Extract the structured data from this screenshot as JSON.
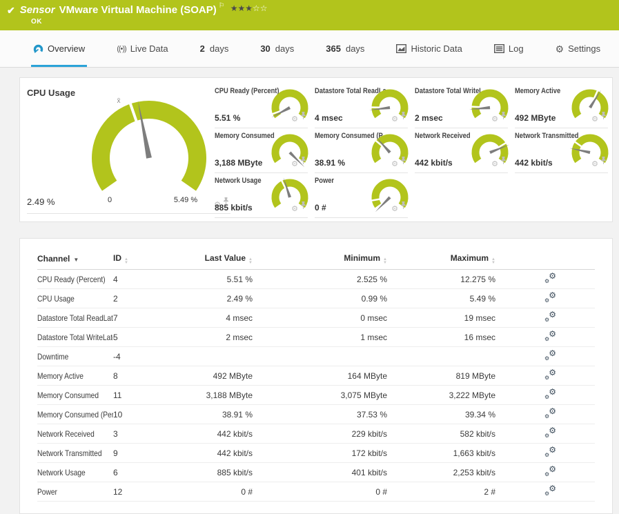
{
  "glyphs": {
    "check": "✔",
    "flag": "⚐",
    "gear": "⚙",
    "star_filled": "★",
    "star_empty": "☆",
    "live": "((•))",
    "avg": "x̄",
    "sort_up": "▲",
    "sort_down": "▼"
  },
  "colors": {
    "accent_green": "#b2c41c",
    "accent_blue": "#2ba3d8",
    "needle_gray": "#7d7d7d",
    "row_icon": "#3a4a59"
  },
  "header": {
    "type_label": "Sensor",
    "title": "VMware Virtual Machine (SOAP)",
    "status": "OK",
    "rating": {
      "filled": 3,
      "total": 5
    }
  },
  "tabs": [
    {
      "id": "overview",
      "icon": "gauge",
      "label": "Overview",
      "active": true
    },
    {
      "id": "live-data",
      "icon": "live",
      "label": "Live Data",
      "active": false
    },
    {
      "id": "2-days",
      "prefix": "2",
      "label": "days",
      "active": false
    },
    {
      "id": "30-days",
      "prefix": "30",
      "label": "days",
      "active": false
    },
    {
      "id": "365-days",
      "prefix": "365",
      "label": "days",
      "active": false
    },
    {
      "id": "historic-data",
      "icon": "chart",
      "label": "Historic Data",
      "active": false
    },
    {
      "id": "log",
      "icon": "log",
      "label": "Log",
      "active": false
    },
    {
      "id": "settings",
      "icon": "gear",
      "label": "Settings",
      "active": false
    }
  ],
  "gauges": {
    "main": {
      "title": "CPU Usage",
      "value": "2.49 %",
      "min_label": "0",
      "max_label": "5.49 %",
      "needle_angle": -11,
      "avg_angle": -19,
      "avg_symbol": "x̄"
    },
    "items": [
      {
        "slug": "cpu-ready",
        "title": "CPU Ready (Percent)",
        "value": "5.51 %",
        "needle_angle": -118,
        "avg_angle": -110
      },
      {
        "slug": "datastore-read",
        "title": "Datastore Total ReadLa...",
        "value": "4 msec",
        "needle_angle": -97,
        "avg_angle": -89
      },
      {
        "slug": "datastore-write",
        "title": "Datastore Total WriteL...",
        "value": "2 msec",
        "needle_angle": -95,
        "avg_angle": -87
      },
      {
        "slug": "memory-active",
        "title": "Memory Active",
        "value": "492 MByte",
        "needle_angle": 32,
        "avg_angle": 24
      },
      {
        "slug": "memory-consumed",
        "title": "Memory Consumed",
        "value": "3,188 MByte",
        "needle_angle": 135,
        "avg_angle": 127
      },
      {
        "slug": "memory-consumed-pct",
        "title": "Memory Consumed (P...",
        "value": "38.91 %",
        "needle_angle": -42,
        "avg_angle": -50
      },
      {
        "slug": "network-received",
        "title": "Network Received",
        "value": "442 kbit/s",
        "needle_angle": 68,
        "avg_angle": 59
      },
      {
        "slug": "network-transmitted",
        "title": "Network Transmitted",
        "value": "442 kbit/s",
        "needle_angle": -78,
        "avg_angle": -55
      },
      {
        "slug": "network-usage",
        "title": "Network Usage",
        "value": "885 kbit/s",
        "needle_angle": -18,
        "avg_angle": -26
      },
      {
        "slug": "power",
        "title": "Power",
        "value": "0 #",
        "needle_angle": -135,
        "avg_angle": -100
      }
    ]
  },
  "table": {
    "columns": [
      {
        "key": "channel",
        "label": "Channel",
        "sort": "desc"
      },
      {
        "key": "id",
        "label": "ID",
        "sort": "both"
      },
      {
        "key": "last",
        "label": "Last Value",
        "sort": "both"
      },
      {
        "key": "min",
        "label": "Minimum",
        "sort": "both"
      },
      {
        "key": "max",
        "label": "Maximum",
        "sort": "both"
      },
      {
        "key": "actions",
        "label": "",
        "sort": null
      }
    ],
    "rows": [
      {
        "channel": "CPU Ready (Percent)",
        "id": "4",
        "last": "5.51 %",
        "min": "2.525 %",
        "max": "12.275 %"
      },
      {
        "channel": "CPU Usage",
        "id": "2",
        "last": "2.49 %",
        "min": "0.99 %",
        "max": "5.49 %"
      },
      {
        "channel": "Datastore Total ReadLate...",
        "id": "7",
        "last": "4 msec",
        "min": "0 msec",
        "max": "19 msec"
      },
      {
        "channel": "Datastore Total WriteLate...",
        "id": "5",
        "last": "2 msec",
        "min": "1 msec",
        "max": "16 msec"
      },
      {
        "channel": "Downtime",
        "id": "-4",
        "last": "",
        "min": "",
        "max": ""
      },
      {
        "channel": "Memory Active",
        "id": "8",
        "last": "492 MByte",
        "min": "164 MByte",
        "max": "819 MByte"
      },
      {
        "channel": "Memory Consumed",
        "id": "11",
        "last": "3,188 MByte",
        "min": "3,075 MByte",
        "max": "3,222 MByte"
      },
      {
        "channel": "Memory Consumed (Per...",
        "id": "10",
        "last": "38.91 %",
        "min": "37.53 %",
        "max": "39.34 %"
      },
      {
        "channel": "Network Received",
        "id": "3",
        "last": "442 kbit/s",
        "min": "229 kbit/s",
        "max": "582 kbit/s"
      },
      {
        "channel": "Network Transmitted",
        "id": "9",
        "last": "442 kbit/s",
        "min": "172 kbit/s",
        "max": "1,663 kbit/s"
      },
      {
        "channel": "Network Usage",
        "id": "6",
        "last": "885 kbit/s",
        "min": "401 kbit/s",
        "max": "2,253 kbit/s"
      },
      {
        "channel": "Power",
        "id": "12",
        "last": "0 #",
        "min": "0 #",
        "max": "2 #"
      }
    ]
  }
}
